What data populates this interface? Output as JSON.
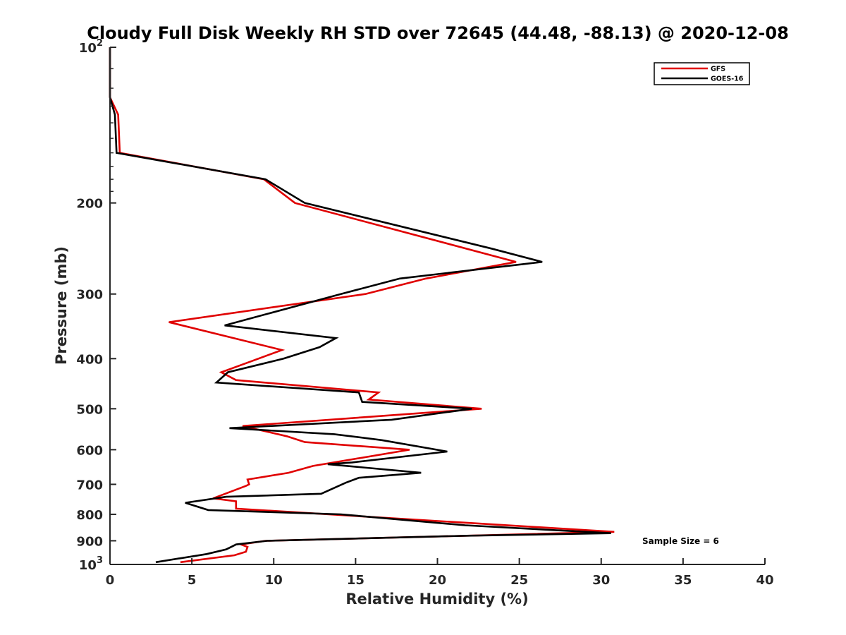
{
  "chart_data": {
    "type": "line",
    "title": "Cloudy Full Disk Weekly RH STD over 72645 (44.48, -88.13) @ 2020-12-08",
    "xlabel": "Relative Humidity (%)",
    "ylabel": "Pressure (mb)",
    "xlim": [
      0,
      40
    ],
    "ylim": [
      100,
      1000
    ],
    "y_scale": "log",
    "y_reversed": true,
    "x_ticks": [
      "0",
      "5",
      "10",
      "15",
      "20",
      "25",
      "30",
      "35",
      "40"
    ],
    "y_ticks": [
      {
        "value": 100,
        "base": "10",
        "exp": "2"
      },
      {
        "value": 200,
        "label": "200"
      },
      {
        "value": 300,
        "label": "300"
      },
      {
        "value": 400,
        "label": "400"
      },
      {
        "value": 500,
        "label": "500"
      },
      {
        "value": 600,
        "label": "600"
      },
      {
        "value": 700,
        "label": "700"
      },
      {
        "value": 800,
        "label": "800"
      },
      {
        "value": 900,
        "label": "900"
      },
      {
        "value": 1000,
        "base": "10",
        "exp": "3"
      }
    ],
    "legend_position": "top-right",
    "grid": false,
    "series": [
      {
        "name": "GFS",
        "color": "#e00000",
        "points": [
          [
            0,
            100
          ],
          [
            0,
            125
          ],
          [
            0.5,
            135
          ],
          [
            0.6,
            160
          ],
          [
            9.4,
            180
          ],
          [
            11.3,
            200
          ],
          [
            24.8,
            260
          ],
          [
            19.3,
            280
          ],
          [
            15.6,
            300
          ],
          [
            3.6,
            340
          ],
          [
            10.5,
            385
          ],
          [
            8.6,
            405
          ],
          [
            6.8,
            425
          ],
          [
            7.7,
            440
          ],
          [
            16.4,
            465
          ],
          [
            15.8,
            480
          ],
          [
            22.7,
            500
          ],
          [
            8.1,
            540
          ],
          [
            10.8,
            565
          ],
          [
            11.9,
            580
          ],
          [
            18.3,
            600
          ],
          [
            12.4,
            645
          ],
          [
            10.9,
            665
          ],
          [
            8.4,
            685
          ],
          [
            8.5,
            700
          ],
          [
            8.3,
            705
          ],
          [
            6.3,
            745
          ],
          [
            7.7,
            755
          ],
          [
            7.7,
            780
          ],
          [
            21.6,
            830
          ],
          [
            30.8,
            865
          ],
          [
            21.8,
            880
          ],
          [
            9.5,
            900
          ],
          [
            8.0,
            915
          ],
          [
            8.4,
            925
          ],
          [
            8.3,
            945
          ],
          [
            7.6,
            960
          ],
          [
            4.3,
            990
          ]
        ]
      },
      {
        "name": "GOES-16",
        "color": "#000000",
        "points": [
          [
            0,
            100
          ],
          [
            0,
            125
          ],
          [
            0.3,
            135
          ],
          [
            0.4,
            160
          ],
          [
            9.5,
            180
          ],
          [
            11.9,
            200
          ],
          [
            23.3,
            245
          ],
          [
            26.4,
            260
          ],
          [
            17.7,
            280
          ],
          [
            14.1,
            300
          ],
          [
            7.0,
            345
          ],
          [
            13.8,
            365
          ],
          [
            12.8,
            380
          ],
          [
            10.6,
            400
          ],
          [
            7.2,
            425
          ],
          [
            6.5,
            445
          ],
          [
            15.2,
            465
          ],
          [
            15.4,
            485
          ],
          [
            22.1,
            500
          ],
          [
            17.2,
            525
          ],
          [
            7.3,
            545
          ],
          [
            13.7,
            560
          ],
          [
            16.6,
            575
          ],
          [
            20.6,
            605
          ],
          [
            14.8,
            635
          ],
          [
            13.3,
            640
          ],
          [
            19.0,
            665
          ],
          [
            15.2,
            680
          ],
          [
            14.4,
            695
          ],
          [
            12.9,
            730
          ],
          [
            7.1,
            740
          ],
          [
            4.6,
            760
          ],
          [
            6.0,
            785
          ],
          [
            14.1,
            800
          ],
          [
            21.7,
            840
          ],
          [
            30.6,
            870
          ],
          [
            21.8,
            880
          ],
          [
            9.6,
            900
          ],
          [
            7.7,
            915
          ],
          [
            7.4,
            925
          ],
          [
            7.1,
            935
          ],
          [
            5.9,
            955
          ],
          [
            2.8,
            990
          ]
        ]
      }
    ],
    "annotation": "Sample Size = 6"
  }
}
